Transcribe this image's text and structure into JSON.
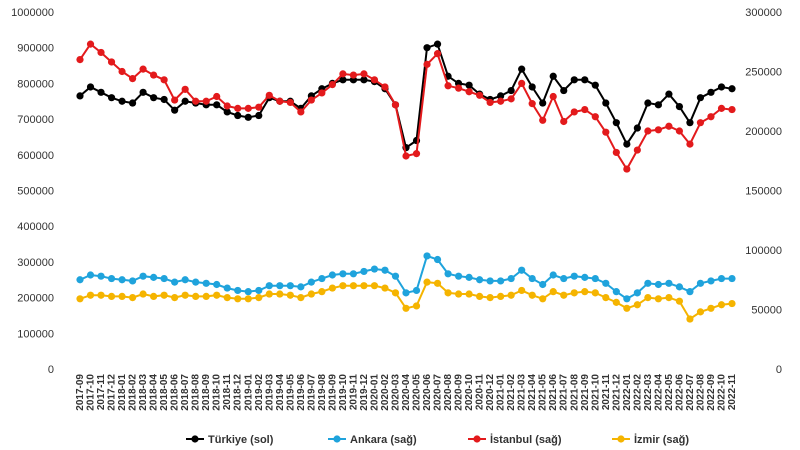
{
  "chart_data": {
    "type": "line",
    "title": "",
    "xlabel": "",
    "ylabel_left": "",
    "ylabel_right": "",
    "x": [
      "2017-09",
      "2017-10",
      "2017-11",
      "2017-12",
      "2018-01",
      "2018-02",
      "2018-03",
      "2018-04",
      "2018-05",
      "2018-06",
      "2018-07",
      "2018-08",
      "2018-09",
      "2018-10",
      "2018-11",
      "2018-12",
      "2019-01",
      "2019-02",
      "2019-03",
      "2019-04",
      "2019-05",
      "2019-06",
      "2019-07",
      "2019-08",
      "2019-09",
      "2019-10",
      "2019-11",
      "2019-12",
      "2020-01",
      "2020-02",
      "2020-03",
      "2020-04",
      "2020-05",
      "2020-06",
      "2020-07",
      "2020-08",
      "2020-09",
      "2020-10",
      "2020-11",
      "2020-12",
      "2021-01",
      "2021-02",
      "2021-03",
      "2021-04",
      "2021-05",
      "2021-06",
      "2021-07",
      "2021-08",
      "2021-09",
      "2021-10",
      "2021-11",
      "2021-12",
      "2022-01",
      "2022-02",
      "2022-03",
      "2022-04",
      "2022-05",
      "2022-06",
      "2022-07",
      "2022-08",
      "2022-09",
      "2022-10",
      "2022-11"
    ],
    "y_left": {
      "ylim": [
        0,
        1000000
      ],
      "ticks": [
        "0",
        "100000",
        "200000",
        "300000",
        "400000",
        "500000",
        "600000",
        "700000",
        "800000",
        "900000",
        "1000000"
      ]
    },
    "y_right": {
      "ylim": [
        0,
        300000
      ],
      "ticks": [
        "0",
        "50000",
        "100000",
        "150000",
        "200000",
        "250000",
        "300000"
      ]
    },
    "grid": false,
    "legend_position": "bottom",
    "series": [
      {
        "name": "Türkiye (sol)",
        "axis": "left",
        "color": "#000000",
        "values": [
          765000,
          790000,
          775000,
          760000,
          750000,
          745000,
          775000,
          760000,
          755000,
          725000,
          750000,
          745000,
          740000,
          740000,
          720000,
          710000,
          705000,
          710000,
          760000,
          750000,
          750000,
          730000,
          765000,
          785000,
          800000,
          810000,
          810000,
          810000,
          805000,
          785000,
          740000,
          620000,
          640000,
          900000,
          910000,
          820000,
          800000,
          795000,
          770000,
          755000,
          765000,
          780000,
          840000,
          790000,
          745000,
          820000,
          780000,
          810000,
          810000,
          795000,
          745000,
          690000,
          630000,
          675000,
          745000,
          740000,
          770000,
          735000,
          690000,
          760000,
          775000,
          790000,
          785000
        ]
      },
      {
        "name": "Ankara (sağ)",
        "axis": "right",
        "color": "#1fa3dc",
        "values": [
          75000,
          79000,
          78000,
          76000,
          75000,
          74000,
          78000,
          77000,
          76000,
          73000,
          75000,
          73000,
          72000,
          71000,
          68000,
          66000,
          65000,
          66000,
          70000,
          70000,
          70000,
          69000,
          73000,
          76000,
          79000,
          80000,
          80000,
          82000,
          84000,
          83000,
          78000,
          64000,
          66000,
          95000,
          92000,
          80000,
          78000,
          77000,
          75000,
          74000,
          74000,
          76000,
          83000,
          76000,
          71000,
          79000,
          76000,
          78000,
          77000,
          76000,
          72000,
          65000,
          59000,
          64000,
          72000,
          71000,
          72000,
          69000,
          65000,
          72000,
          74000,
          76000,
          76000
        ]
      },
      {
        "name": "İstanbul (sağ)",
        "axis": "right",
        "color": "#e31a1c",
        "values": [
          260000,
          273000,
          266000,
          258000,
          250000,
          244000,
          252000,
          247000,
          243000,
          226000,
          235000,
          225000,
          225000,
          229000,
          221000,
          219000,
          219000,
          220000,
          230000,
          225000,
          224000,
          216000,
          226000,
          232000,
          239000,
          248000,
          247000,
          248000,
          243000,
          237000,
          222000,
          179000,
          181000,
          256000,
          265000,
          238000,
          236000,
          233000,
          230000,
          224000,
          225000,
          227000,
          240000,
          223000,
          209000,
          229000,
          208000,
          216000,
          218000,
          212000,
          199000,
          182000,
          168000,
          184000,
          200000,
          201000,
          204000,
          200000,
          189000,
          207000,
          212000,
          219000,
          218000
        ]
      },
      {
        "name": "İzmir (sağ)",
        "axis": "right",
        "color": "#f5b400",
        "values": [
          59000,
          62000,
          62000,
          61000,
          61000,
          60000,
          63000,
          61000,
          62000,
          60000,
          62000,
          61000,
          61000,
          62000,
          60000,
          59000,
          59000,
          60000,
          63000,
          63000,
          62000,
          60000,
          63000,
          65000,
          68000,
          70000,
          70000,
          70000,
          70000,
          68000,
          64000,
          51000,
          53000,
          73000,
          72000,
          64000,
          63000,
          63000,
          61000,
          60000,
          61000,
          62000,
          66000,
          62000,
          59000,
          65000,
          62000,
          64000,
          65000,
          64000,
          60000,
          56000,
          51000,
          54000,
          60000,
          59000,
          60000,
          57000,
          42000,
          48000,
          51000,
          54000,
          55000
        ]
      }
    ]
  }
}
